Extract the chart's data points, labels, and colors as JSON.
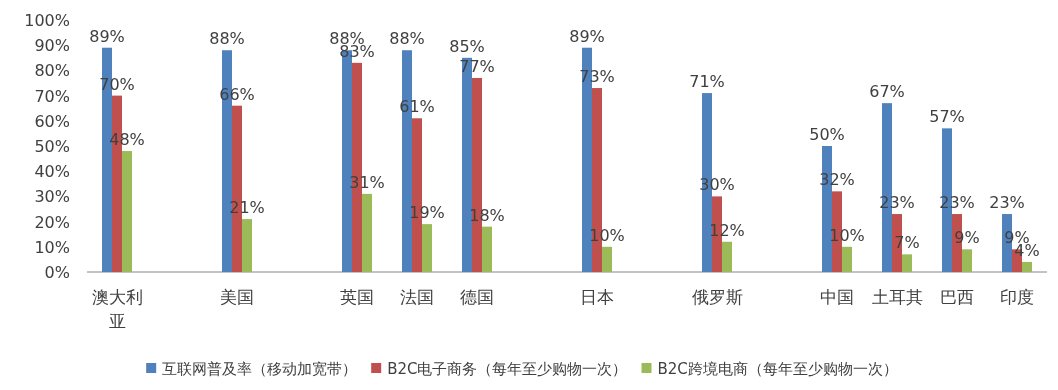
{
  "chart_data": {
    "type": "bar",
    "categories": [
      "澳大利亚",
      null,
      "美国",
      null,
      "英国",
      "法国",
      "德国",
      null,
      "日本",
      null,
      "俄罗斯",
      null,
      "中国",
      "土耳其",
      "巴西",
      "印度"
    ],
    "series": [
      {
        "name": "互联网普及率（移动加宽带）",
        "color": "#4f81bd",
        "values": [
          89,
          null,
          88,
          null,
          88,
          88,
          85,
          null,
          89,
          null,
          71,
          null,
          50,
          67,
          57,
          23
        ],
        "value_labels": [
          "89%",
          null,
          "88%",
          null,
          "88%",
          "88%",
          "85%",
          null,
          "89%",
          null,
          "71%",
          null,
          "50%",
          "67%",
          "57%",
          "23%"
        ]
      },
      {
        "name": "B2C电子商务（每年至少购物一次）",
        "color": "#c0504d",
        "values": [
          70,
          null,
          66,
          null,
          83,
          61,
          77,
          null,
          73,
          null,
          30,
          null,
          32,
          23,
          23,
          9
        ],
        "value_labels": [
          "70%",
          null,
          "66%",
          null,
          "83%",
          "61%",
          "77%",
          null,
          "73%",
          null,
          "30%",
          null,
          "32%",
          "23%",
          "23%",
          "9%"
        ]
      },
      {
        "name": "B2C跨境电商（每年至少购物一次）",
        "color": "#9bbb59",
        "values": [
          48,
          null,
          21,
          null,
          31,
          19,
          18,
          null,
          10,
          null,
          12,
          null,
          10,
          7,
          9,
          4
        ],
        "value_labels": [
          "48%",
          null,
          "21%",
          null,
          "31%",
          "19%",
          "18%",
          null,
          "10%",
          null,
          "12%",
          null,
          "10%",
          "7%",
          "9%",
          "4%"
        ]
      }
    ],
    "ylim": [
      0,
      100
    ],
    "yticks": [
      {
        "value": 0,
        "label": "0%"
      },
      {
        "value": 10,
        "label": "10%"
      },
      {
        "value": 20,
        "label": "20%"
      },
      {
        "value": 30,
        "label": "30%"
      },
      {
        "value": 40,
        "label": "40%"
      },
      {
        "value": 50,
        "label": "50%"
      },
      {
        "value": 60,
        "label": "60%"
      },
      {
        "value": 70,
        "label": "70%"
      },
      {
        "value": 80,
        "label": "80%"
      },
      {
        "value": 90,
        "label": "90%"
      },
      {
        "value": 100,
        "label": "100%"
      }
    ],
    "legend": "bottom"
  }
}
